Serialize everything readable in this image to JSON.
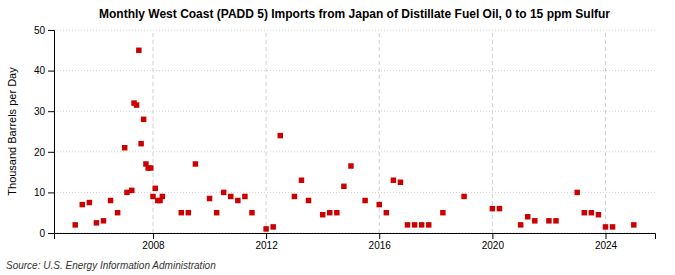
{
  "chart_data": {
    "type": "scatter",
    "title": "Monthly West Coast (PADD 5) Imports from Japan of Distillate Fuel Oil, 0 to 15 ppm Sulfur",
    "ylabel": "Thousand Barrels per Day",
    "annotations": [
      "Source: U.S. Energy Information Administration"
    ],
    "x": [
      2005.25,
      2005.5,
      2005.75,
      2006.0,
      2006.25,
      2006.5,
      2006.75,
      2007.0,
      2007.08,
      2007.25,
      2007.33,
      2007.42,
      2007.5,
      2007.58,
      2007.67,
      2007.75,
      2007.83,
      2007.92,
      2008.0,
      2008.08,
      2008.17,
      2008.25,
      2008.33,
      2009.0,
      2009.25,
      2009.5,
      2010.0,
      2010.25,
      2010.5,
      2010.75,
      2011.0,
      2011.25,
      2011.5,
      2012.0,
      2012.25,
      2012.5,
      2013.0,
      2013.25,
      2013.5,
      2014.0,
      2014.25,
      2014.5,
      2014.75,
      2015.0,
      2015.5,
      2016.0,
      2016.25,
      2016.5,
      2016.75,
      2017.0,
      2017.25,
      2017.5,
      2017.75,
      2018.25,
      2019.0,
      2020.0,
      2020.25,
      2021.0,
      2021.25,
      2021.5,
      2022.0,
      2022.25,
      2023.0,
      2023.25,
      2023.5,
      2023.75,
      2024.0,
      2024.25,
      2025.0
    ],
    "values": [
      2.0,
      7.0,
      7.5,
      2.5,
      3.0,
      8.0,
      5.0,
      21.0,
      10.0,
      10.5,
      32.0,
      31.5,
      45.0,
      22.0,
      28.0,
      17.0,
      16.0,
      16.0,
      9.0,
      11.0,
      8.0,
      8.0,
      9.0,
      5.0,
      5.0,
      17.0,
      8.5,
      5.0,
      10.0,
      9.0,
      8.0,
      9.0,
      5.0,
      1.0,
      1.5,
      24.0,
      9.0,
      13.0,
      8.0,
      4.5,
      5.0,
      5.0,
      11.5,
      16.5,
      8.0,
      7.0,
      5.0,
      13.0,
      12.5,
      2.0,
      2.0,
      2.0,
      2.0,
      5.0,
      9.0,
      6.0,
      6.0,
      2.0,
      4.0,
      3.0,
      3.0,
      3.0,
      10.0,
      5.0,
      5.0,
      4.5,
      1.5,
      1.5,
      2.0
    ],
    "color": "#cc0000",
    "marker": "square",
    "xlim": [
      2004.5,
      2025.75
    ],
    "xticks": [
      2008,
      2012,
      2016,
      2020,
      2024
    ],
    "ylim": [
      0,
      50
    ],
    "yticks": [
      0,
      10,
      20,
      30,
      40,
      50
    ],
    "grid": true
  }
}
